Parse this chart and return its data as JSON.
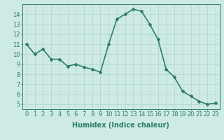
{
  "x": [
    0,
    1,
    2,
    3,
    4,
    5,
    6,
    7,
    8,
    9,
    10,
    11,
    12,
    13,
    14,
    15,
    16,
    17,
    18,
    19,
    20,
    21,
    22,
    23
  ],
  "y": [
    11,
    10,
    10.5,
    9.5,
    9.5,
    8.8,
    9,
    8.7,
    8.5,
    8.2,
    11,
    13.5,
    14,
    14.5,
    14.3,
    13,
    11.5,
    8.5,
    7.7,
    6.3,
    5.8,
    5.3,
    5.0,
    5.1
  ],
  "line_color": "#2e7d6e",
  "marker": "D",
  "marker_size": 2,
  "bg_color": "#ceeae5",
  "grid_color": "#afd4ce",
  "xlabel": "Humidex (Indice chaleur)",
  "ylim": [
    4.5,
    15
  ],
  "xlim": [
    -0.5,
    23.5
  ],
  "yticks": [
    5,
    6,
    7,
    8,
    9,
    10,
    11,
    12,
    13,
    14
  ],
  "xticks": [
    0,
    1,
    2,
    3,
    4,
    5,
    6,
    7,
    8,
    9,
    10,
    11,
    12,
    13,
    14,
    15,
    16,
    17,
    18,
    19,
    20,
    21,
    22,
    23
  ],
  "tick_color": "#2e7d6e",
  "label_color": "#2e7d6e",
  "xlabel_fontsize": 7,
  "tick_fontsize": 6,
  "linewidth": 1.2
}
